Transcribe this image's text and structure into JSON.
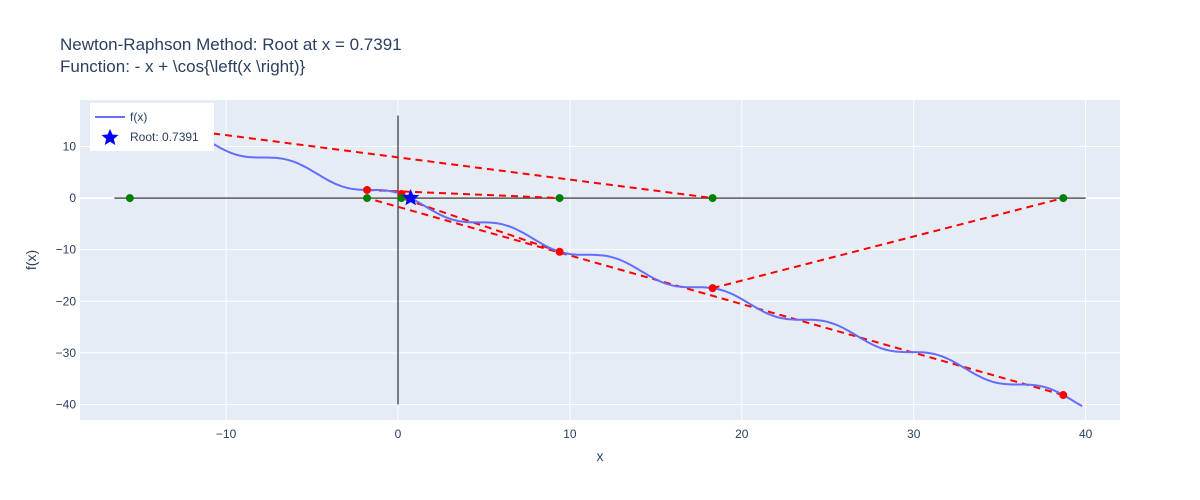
{
  "title_line1": "Newton-Raphson Method: Root at x = 0.7391",
  "title_line2": "Function: - x + \\cos{\\left(x \\right)}",
  "chart_data": {
    "type": "line",
    "xlabel": "x",
    "ylabel": "f(x)",
    "xlim": [
      -18.5,
      42
    ],
    "ylim": [
      -43,
      19
    ],
    "xticks": [
      -10,
      0,
      10,
      20,
      30,
      40
    ],
    "yticks": [
      10,
      0,
      -10,
      -20,
      -30,
      -40
    ],
    "ytick_labels": [
      "10",
      "0",
      "−10",
      "−20",
      "−30",
      "−40"
    ],
    "xtick_labels": [
      "−10",
      "0",
      "10",
      "20",
      "30",
      "40"
    ],
    "grid": true,
    "legend_position": "top-left",
    "series": [
      {
        "name": "f(x)",
        "kind": "curve",
        "color": "#636efa",
        "x_range": [
          -11,
          39.8
        ]
      },
      {
        "name": "Root: 0.7391",
        "kind": "marker-star",
        "color": "#0000ff",
        "x": 0.7391,
        "y": 0
      }
    ],
    "iterations": [
      {
        "x0": -15.6,
        "x1": 18.3
      },
      {
        "x0": 18.3,
        "x1": 38.7
      },
      {
        "x0": 38.7,
        "x1": -1.8
      },
      {
        "x0": -1.8,
        "x1": 9.4
      },
      {
        "x0": 9.4,
        "x1": 0.2
      },
      {
        "x0": 0.2,
        "x1": 0.7391
      }
    ],
    "root_x": 0.7391,
    "axes_lines": {
      "x_axis_range": [
        -16.5,
        40
      ],
      "y_axis_range": [
        -40,
        16
      ]
    },
    "colors": {
      "plot_bg": "#e5ecf6",
      "grid": "#ffffff",
      "curve": "#636efa",
      "tangent": "#ff0000",
      "point_on_curve": "#ff0000",
      "point_on_axis": "#008000",
      "axis_line": "#555555",
      "star": "#0000ff"
    }
  }
}
